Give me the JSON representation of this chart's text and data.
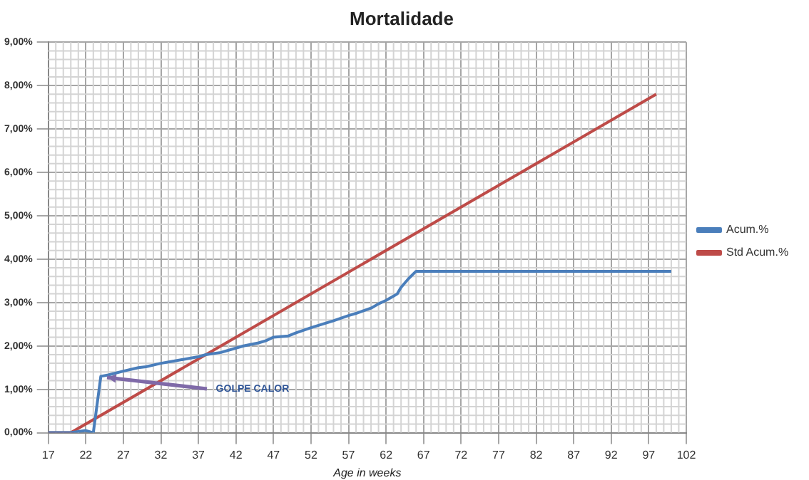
{
  "chart_data": {
    "type": "line",
    "title": "Mortalidade",
    "xlabel": "Age in weeks",
    "xlim": [
      17,
      102
    ],
    "xticks": [
      17,
      22,
      27,
      32,
      37,
      42,
      47,
      52,
      57,
      62,
      67,
      72,
      77,
      82,
      87,
      92,
      97,
      102
    ],
    "ylim": [
      0,
      9
    ],
    "yticks": [
      {
        "value": 0,
        "label": "0,00%"
      },
      {
        "value": 1,
        "label": "1,00%"
      },
      {
        "value": 2,
        "label": "2,00%"
      },
      {
        "value": 3,
        "label": "3,00%"
      },
      {
        "value": 4,
        "label": "4,00%"
      },
      {
        "value": 5,
        "label": "5,00%"
      },
      {
        "value": 6,
        "label": "6,00%"
      },
      {
        "value": 7,
        "label": "7,00%"
      },
      {
        "value": 8,
        "label": "8,00%"
      },
      {
        "value": 9,
        "label": "9,00%"
      }
    ],
    "series": [
      {
        "name": "Acum.%",
        "color": "#4a7ebb",
        "x": [
          17,
          20,
          22,
          23,
          24,
          25,
          27,
          29,
          30,
          32,
          34,
          36,
          37,
          38,
          40,
          42,
          43,
          45,
          46,
          47,
          49,
          50,
          52,
          55,
          57,
          58,
          60,
          61,
          62,
          63,
          63.5,
          64,
          65,
          66,
          100
        ],
        "values": [
          0,
          0,
          0.05,
          0,
          1.3,
          1.33,
          1.42,
          1.5,
          1.52,
          1.6,
          1.66,
          1.72,
          1.75,
          1.8,
          1.85,
          1.95,
          2,
          2.07,
          2.12,
          2.2,
          2.23,
          2.3,
          2.42,
          2.58,
          2.7,
          2.75,
          2.87,
          2.97,
          3.05,
          3.15,
          3.2,
          3.35,
          3.55,
          3.72,
          3.72
        ]
      },
      {
        "name": "Std Acum.%",
        "color": "#be4b48",
        "x": [
          17,
          20,
          98
        ],
        "values": [
          0,
          0,
          7.8
        ]
      }
    ],
    "annotations": [
      {
        "text": "GOLPE CALOR",
        "x": 24.5,
        "y": 1.3
      }
    ],
    "grid": true,
    "legend": "right",
    "marker": "none",
    "line_style": "solid"
  }
}
